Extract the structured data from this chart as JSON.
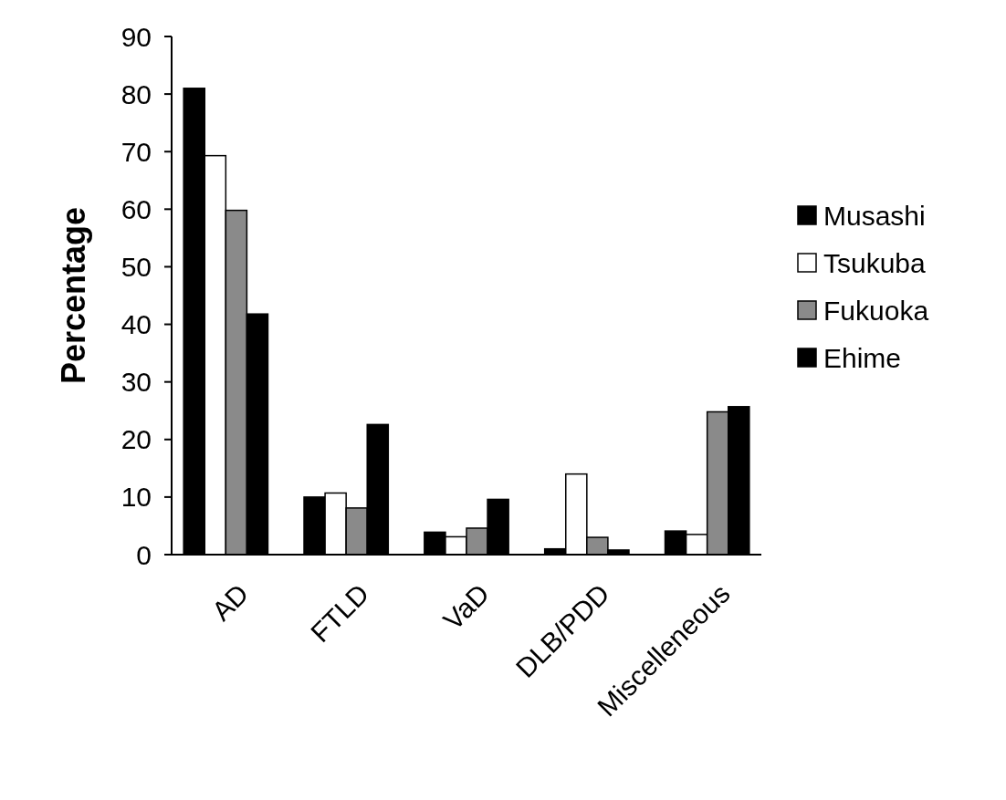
{
  "chart_data": {
    "type": "bar",
    "ylabel": "Percentage",
    "categories": [
      "AD",
      "FTLD",
      "VaD",
      "DLB/PDD",
      "Miscelleneous"
    ],
    "series": [
      {
        "name": "Musashi",
        "color": "#000000",
        "values": [
          81,
          10,
          3.9,
          1,
          4.1
        ]
      },
      {
        "name": "Tsukuba",
        "color": "#ffffff",
        "values": [
          69.3,
          10.7,
          3.1,
          14,
          3.5
        ]
      },
      {
        "name": "Fukuoka",
        "color": "#8a8a8a",
        "values": [
          59.8,
          8.1,
          4.6,
          3,
          24.8
        ]
      },
      {
        "name": "Ehime",
        "color": "#000000",
        "values": [
          41.8,
          22.6,
          9.6,
          0.8,
          25.7
        ]
      }
    ],
    "ylim": [
      0,
      90
    ],
    "yticks": [
      0,
      10,
      20,
      30,
      40,
      50,
      60,
      70,
      80,
      90
    ],
    "legend": "right",
    "grid": false
  }
}
